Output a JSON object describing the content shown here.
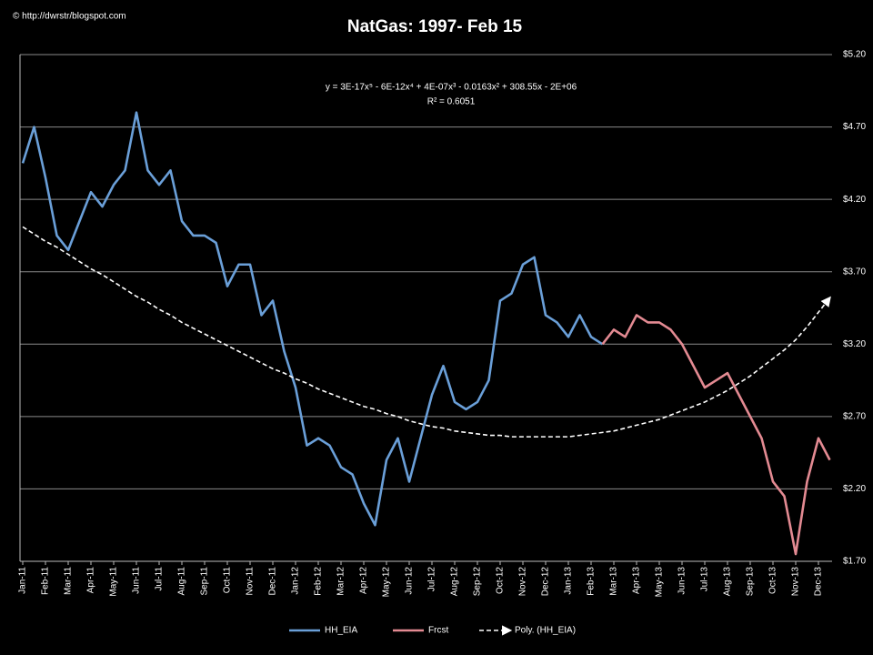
{
  "chart_data": {
    "type": "line",
    "title": "NatGas: 1997- Feb 15",
    "credit": "© http://dwrstr/blogspot.com",
    "annotations": [
      "y = 3E-17x⁵ - 6E-12x⁴ + 4E-07x³ - 0.0163x² + 308.55x - 2E+06",
      "R² = 0.6051"
    ],
    "categories": [
      "Jan-11",
      null,
      "Feb-11",
      null,
      "Mar-11",
      null,
      "Apr-11",
      null,
      "May-11",
      null,
      "Jun-11",
      null,
      "Jul-11",
      null,
      "Aug-11",
      null,
      "Sep-11",
      null,
      "Oct-11",
      null,
      "Nov-11",
      null,
      "Dec-11",
      null,
      "Jan-12",
      null,
      "Feb-12",
      null,
      "Mar-12",
      null,
      "Apr-12",
      null,
      "May-12",
      null,
      "Jun-12",
      null,
      "Jul-12",
      null,
      "Aug-12",
      null,
      "Sep-12",
      null,
      "Oct-12",
      null,
      "Nov-12",
      null,
      "Dec-12",
      null,
      "Jan-13",
      null,
      "Feb-13",
      null,
      "Mar-13",
      null,
      "Apr-13",
      null,
      "May-13",
      null,
      "Jun-13",
      null,
      "Jul-13",
      null,
      "Aug-13",
      null,
      "Sep-13",
      null,
      "Oct-13",
      null,
      "Nov-13",
      null,
      "Dec-13",
      null
    ],
    "series": [
      {
        "name": "HH_EIA",
        "color": "#6a9fd8",
        "style": "solid",
        "values": [
          4.45,
          4.7,
          4.35,
          3.95,
          3.85,
          4.05,
          4.25,
          4.15,
          4.3,
          4.4,
          4.8,
          4.4,
          4.3,
          4.4,
          4.05,
          3.95,
          3.95,
          3.9,
          3.6,
          3.75,
          3.75,
          3.4,
          3.5,
          3.15,
          2.9,
          2.5,
          2.55,
          2.5,
          2.35,
          2.3,
          2.1,
          1.95,
          2.4,
          2.55,
          2.25,
          2.55,
          2.85,
          3.05,
          2.8,
          2.75,
          2.8,
          2.95,
          3.5,
          3.55,
          3.75,
          3.8,
          3.4,
          3.35,
          3.25,
          3.4,
          3.25,
          3.2,
          null,
          null,
          null,
          null,
          null,
          null,
          null,
          null,
          null,
          null,
          null,
          null,
          null,
          null,
          null,
          null,
          null,
          null,
          null,
          null
        ]
      },
      {
        "name": "Frcst",
        "color": "#e38a92",
        "style": "solid",
        "values": [
          null,
          null,
          null,
          null,
          null,
          null,
          null,
          null,
          null,
          null,
          null,
          null,
          null,
          null,
          null,
          null,
          null,
          null,
          null,
          null,
          null,
          null,
          null,
          null,
          null,
          null,
          null,
          null,
          null,
          null,
          null,
          null,
          null,
          null,
          null,
          null,
          null,
          null,
          null,
          null,
          null,
          null,
          null,
          null,
          null,
          null,
          null,
          null,
          null,
          null,
          null,
          3.2,
          3.3,
          3.25,
          3.4,
          3.35,
          3.35,
          3.3,
          3.2,
          3.05,
          2.9,
          2.95,
          3.0,
          2.85,
          2.7,
          2.55,
          2.25,
          2.15,
          1.75,
          2.25,
          2.55,
          2.4
        ]
      },
      {
        "name": "Poly. (HH_EIA)",
        "color": "#ffffff",
        "style": "dashed",
        "values": [
          4.01,
          3.96,
          3.91,
          3.87,
          3.82,
          3.77,
          3.72,
          3.68,
          3.63,
          3.58,
          3.53,
          3.49,
          3.44,
          3.4,
          3.35,
          3.31,
          3.27,
          3.23,
          3.19,
          3.15,
          3.11,
          3.07,
          3.03,
          3.0,
          2.96,
          2.93,
          2.89,
          2.86,
          2.83,
          2.8,
          2.77,
          2.75,
          2.72,
          2.7,
          2.67,
          2.65,
          2.63,
          2.62,
          2.6,
          2.59,
          2.58,
          2.57,
          2.57,
          2.56,
          2.56,
          2.56,
          2.56,
          2.56,
          2.56,
          2.57,
          2.58,
          2.59,
          2.6,
          2.62,
          2.64,
          2.66,
          2.68,
          2.71,
          2.74,
          2.77,
          2.8,
          2.84,
          2.88,
          2.93,
          2.98,
          3.04,
          3.1,
          3.16,
          3.23,
          3.32,
          3.42,
          3.52
        ]
      }
    ],
    "ylim": [
      1.7,
      5.2
    ],
    "yticks": [
      {
        "value": 1.7,
        "label": "$1.70"
      },
      {
        "value": 2.2,
        "label": "$2.20"
      },
      {
        "value": 2.7,
        "label": "$2.70"
      },
      {
        "value": 3.2,
        "label": "$3.20"
      },
      {
        "value": 3.7,
        "label": "$3.70"
      },
      {
        "value": 4.2,
        "label": "$4.20"
      },
      {
        "value": 4.7,
        "label": "$4.70"
      },
      {
        "value": 5.2,
        "label": "$5.20"
      }
    ],
    "grid": true,
    "legend": "bottom"
  }
}
